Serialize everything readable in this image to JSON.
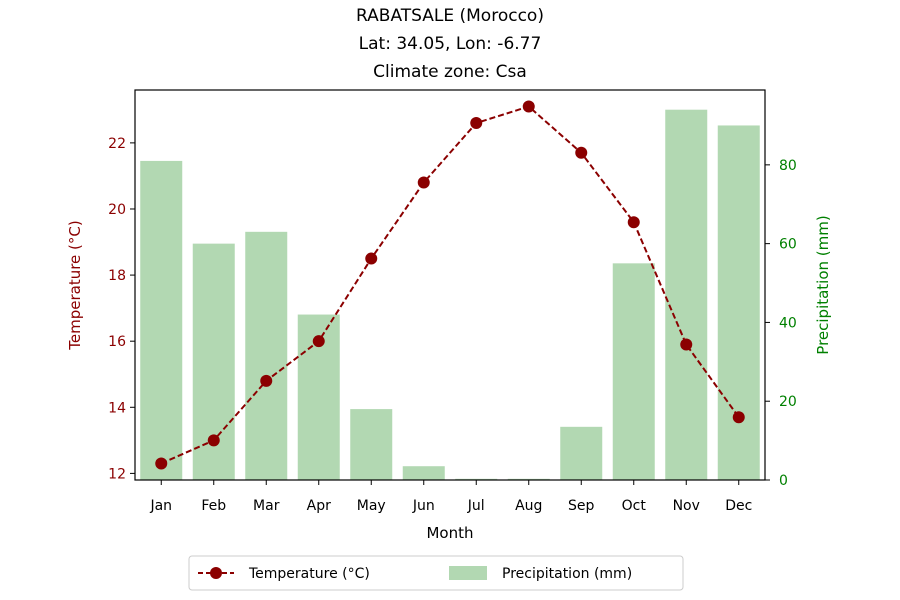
{
  "chart_data": {
    "type": "bar+line",
    "title": [
      "RABATSALE (Morocco)",
      "Lat: 34.05, Lon: -6.77",
      "Climate zone: Csa"
    ],
    "xlabel": "Month",
    "categories": [
      "Jan",
      "Feb",
      "Mar",
      "Apr",
      "May",
      "Jun",
      "Jul",
      "Aug",
      "Sep",
      "Oct",
      "Nov",
      "Dec"
    ],
    "left_axis": {
      "label": "Temperature (°C)",
      "ylim": [
        11.8,
        23.6
      ],
      "ticks": [
        "12",
        "14",
        "16",
        "18",
        "20",
        "22"
      ],
      "color": "#8b0000"
    },
    "right_axis": {
      "label": "Precipitation (mm)",
      "ylim": [
        0,
        99
      ],
      "ticks": [
        "0",
        "20",
        "40",
        "60",
        "80"
      ],
      "color": "#008000"
    },
    "series": [
      {
        "name": "Temperature (°C)",
        "type": "line",
        "axis": "left",
        "style": "dashed with circle markers",
        "color": "#8b0000",
        "values": [
          12.3,
          13.0,
          14.8,
          16.0,
          18.5,
          20.8,
          22.6,
          23.1,
          21.7,
          19.6,
          15.9,
          13.7
        ]
      },
      {
        "name": "Precipitation (mm)",
        "type": "bar",
        "axis": "right",
        "color": "#b2d8b2",
        "values": [
          81,
          60,
          63,
          42,
          18,
          3.5,
          0.3,
          0.3,
          13.5,
          55,
          94,
          90
        ]
      }
    ],
    "legend_position": "bottom-center",
    "grid": false
  }
}
